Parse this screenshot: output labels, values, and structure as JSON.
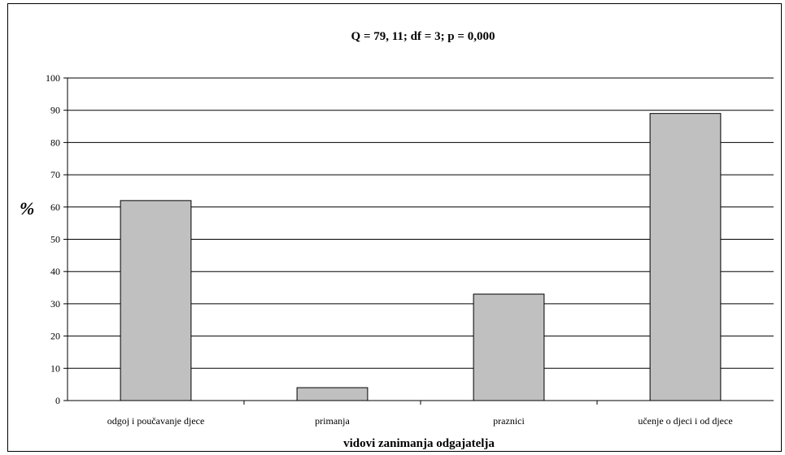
{
  "chart_data": {
    "type": "bar",
    "title": "Q = 79, 11; df = 3; p = 0,000",
    "xlabel": "vidovi zanimanja odgajatelja",
    "ylabel": "%",
    "categories": [
      "odgoj i poučavanje djece",
      "primanja",
      "praznici",
      "učenje o djeci i od djece"
    ],
    "values": [
      62,
      4,
      33,
      89
    ],
    "ylim": [
      0,
      100
    ],
    "yticks": [
      0,
      10,
      20,
      30,
      40,
      50,
      60,
      70,
      80,
      90,
      100
    ],
    "grid": true,
    "legend": "none",
    "colors": {
      "bar_fill": "#C0C0C0",
      "bar_stroke": "#000000",
      "grid": "#000000",
      "background": "#FFFFFF"
    }
  }
}
